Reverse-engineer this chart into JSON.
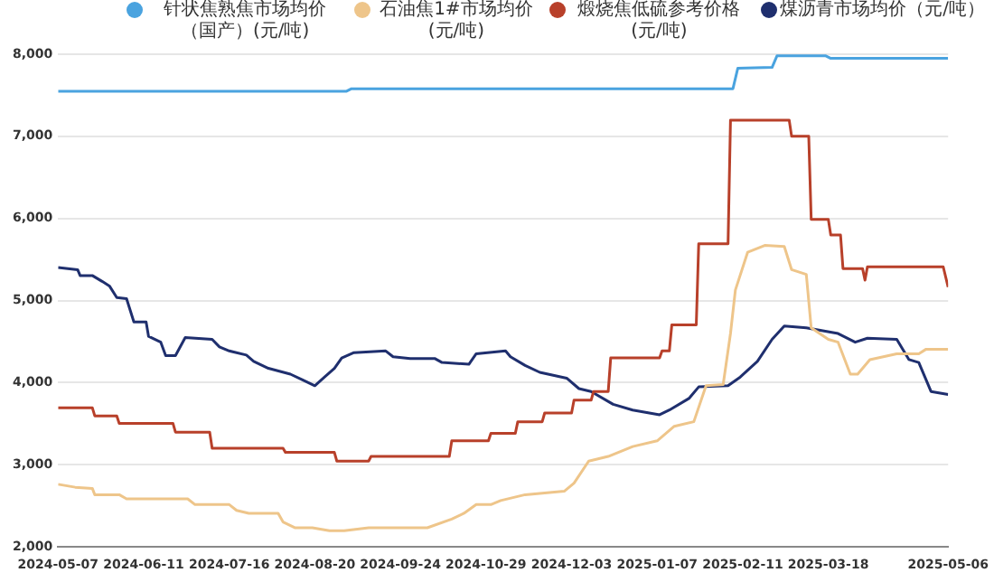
{
  "chart_data": {
    "type": "line",
    "legend": "top",
    "grid": "y",
    "marker": "none",
    "line_style": "solid",
    "xlim": [
      "2024-05-07",
      "2025-05-06"
    ],
    "xticks": [
      "2024-05-07",
      "2024-06-11",
      "2024-07-16",
      "2024-08-20",
      "2024-09-24",
      "2024-10-29",
      "2024-12-03",
      "2025-01-07",
      "2025-02-11",
      "2025-03-18",
      "2025-05-06"
    ],
    "ylim": [
      2000,
      8000
    ],
    "yticks": [
      {
        "value": 2000,
        "label": "2,000"
      },
      {
        "value": 3000,
        "label": "3,000"
      },
      {
        "value": 4000,
        "label": "4,000"
      },
      {
        "value": 5000,
        "label": "5,000"
      },
      {
        "value": 6000,
        "label": "6,000"
      },
      {
        "value": 7000,
        "label": "7,000"
      },
      {
        "value": 8000,
        "label": "8,000"
      }
    ],
    "series": [
      {
        "name": "针状焦熟焦市场均价（国产）(元/吨)",
        "color": "#4aa3df",
        "x": [
          "2024-05-07",
          "2024-09-02",
          "2024-09-04",
          "2025-02-07",
          "2025-02-09",
          "2025-02-23",
          "2025-02-25",
          "2025-03-17",
          "2025-03-19",
          "2025-05-06"
        ],
        "values": [
          7550,
          7550,
          7580,
          7580,
          7830,
          7840,
          7980,
          7980,
          7950,
          7950
        ]
      },
      {
        "name": "石油焦1#市场均价(元/吨)",
        "color": "#eec58a",
        "x": [
          "2024-05-07",
          "2024-05-14",
          "2024-05-21",
          "2024-05-22",
          "2024-06-01",
          "2024-06-04",
          "2024-06-29",
          "2024-07-02",
          "2024-07-16",
          "2024-07-19",
          "2024-07-24",
          "2024-08-05",
          "2024-08-07",
          "2024-08-12",
          "2024-08-19",
          "2024-08-26",
          "2024-09-01",
          "2024-09-11",
          "2024-10-05",
          "2024-10-15",
          "2024-10-20",
          "2024-10-25",
          "2024-10-31",
          "2024-11-04",
          "2024-11-14",
          "2024-11-30",
          "2024-12-04",
          "2024-12-10",
          "2024-12-18",
          "2024-12-28",
          "2025-01-07",
          "2025-01-14",
          "2025-01-22",
          "2025-01-27",
          "2025-02-03",
          "2025-02-06",
          "2025-02-08",
          "2025-02-13",
          "2025-02-20",
          "2025-02-28",
          "2025-03-03",
          "2025-03-09",
          "2025-03-11",
          "2025-03-18",
          "2025-03-22",
          "2025-03-27",
          "2025-03-30",
          "2025-04-04",
          "2025-04-15",
          "2025-04-24",
          "2025-04-27",
          "2025-05-06"
        ],
        "values": [
          2763,
          2727,
          2713,
          2636,
          2636,
          2586,
          2586,
          2516,
          2516,
          2445,
          2410,
          2410,
          2304,
          2233,
          2233,
          2198,
          2198,
          2233,
          2233,
          2339,
          2410,
          2516,
          2516,
          2565,
          2636,
          2678,
          2777,
          3045,
          3102,
          3222,
          3292,
          3469,
          3525,
          3963,
          3977,
          4599,
          5129,
          5588,
          5672,
          5658,
          5376,
          5319,
          4669,
          4528,
          4493,
          4104,
          4104,
          4281,
          4352,
          4352,
          4408,
          4408
        ]
      },
      {
        "name": "煅烧焦低硫参考价格(元/吨)",
        "color": "#b8402a",
        "x": [
          "2024-05-07",
          "2024-05-21",
          "2024-05-22",
          "2024-05-31",
          "2024-06-01",
          "2024-06-23",
          "2024-06-24",
          "2024-07-08",
          "2024-07-09",
          "2024-08-07",
          "2024-08-08",
          "2024-08-28",
          "2024-08-29",
          "2024-09-11",
          "2024-09-12",
          "2024-10-14",
          "2024-10-15",
          "2024-10-30",
          "2024-10-31",
          "2024-11-10",
          "2024-11-11",
          "2024-11-21",
          "2024-11-22",
          "2024-12-03",
          "2024-12-04",
          "2024-12-11",
          "2024-12-12",
          "2024-12-18",
          "2024-12-19",
          "2025-01-08",
          "2025-01-09",
          "2025-01-12",
          "2025-01-13",
          "2025-01-23",
          "2025-01-24",
          "2025-02-05",
          "2025-02-06",
          "2025-03-02",
          "2025-03-03",
          "2025-03-10",
          "2025-03-11",
          "2025-03-18",
          "2025-03-19",
          "2025-03-23",
          "2025-03-24",
          "2025-04-01",
          "2025-04-02",
          "2025-04-03",
          "2025-05-04",
          "2025-05-06"
        ],
        "values": [
          3695,
          3695,
          3596,
          3596,
          3504,
          3504,
          3398,
          3398,
          3201,
          3201,
          3151,
          3151,
          3045,
          3045,
          3102,
          3102,
          3292,
          3292,
          3384,
          3384,
          3525,
          3525,
          3631,
          3631,
          3787,
          3787,
          3893,
          3893,
          4302,
          4302,
          4387,
          4387,
          4705,
          4705,
          5693,
          5693,
          7198,
          7198,
          7000,
          7000,
          5990,
          5990,
          5799,
          5799,
          5390,
          5390,
          5249,
          5411,
          5411,
          5164
        ]
      },
      {
        "name": "煤沥青市场均价（元/吨）",
        "color": "#1f2f6e",
        "x": [
          "2024-05-07",
          "2024-05-15",
          "2024-05-16",
          "2024-05-21",
          "2024-05-25",
          "2024-05-28",
          "2024-05-31",
          "2024-06-04",
          "2024-06-07",
          "2024-06-12",
          "2024-06-13",
          "2024-06-18",
          "2024-06-20",
          "2024-06-24",
          "2024-06-28",
          "2024-07-09",
          "2024-07-12",
          "2024-07-16",
          "2024-07-23",
          "2024-07-26",
          "2024-08-01",
          "2024-08-10",
          "2024-08-15",
          "2024-08-20",
          "2024-08-24",
          "2024-08-28",
          "2024-08-31",
          "2024-09-05",
          "2024-09-18",
          "2024-09-21",
          "2024-09-28",
          "2024-10-08",
          "2024-10-11",
          "2024-10-22",
          "2024-10-25",
          "2024-11-06",
          "2024-11-08",
          "2024-11-14",
          "2024-11-20",
          "2024-12-01",
          "2024-12-06",
          "2024-12-11",
          "2024-12-20",
          "2024-12-28",
          "2025-01-08",
          "2025-01-12",
          "2025-01-20",
          "2025-01-24",
          "2025-02-05",
          "2025-02-10",
          "2025-02-17",
          "2025-02-23",
          "2025-02-28",
          "2025-03-09",
          "2025-03-22",
          "2025-03-29",
          "2025-04-03",
          "2025-04-15",
          "2025-04-20",
          "2025-04-24",
          "2025-04-29",
          "2025-05-06"
        ],
        "values": [
          5404,
          5376,
          5305,
          5305,
          5234,
          5178,
          5037,
          5023,
          4740,
          4740,
          4564,
          4493,
          4330,
          4330,
          4550,
          4528,
          4436,
          4387,
          4337,
          4260,
          4175,
          4104,
          4034,
          3963,
          4069,
          4175,
          4302,
          4366,
          4387,
          4316,
          4295,
          4295,
          4246,
          4225,
          4352,
          4387,
          4316,
          4210,
          4126,
          4055,
          3928,
          3893,
          3737,
          3667,
          3610,
          3667,
          3808,
          3949,
          3963,
          4069,
          4260,
          4528,
          4691,
          4669,
          4599,
          4493,
          4542,
          4528,
          4281,
          4246,
          3893,
          3857
        ]
      }
    ]
  }
}
